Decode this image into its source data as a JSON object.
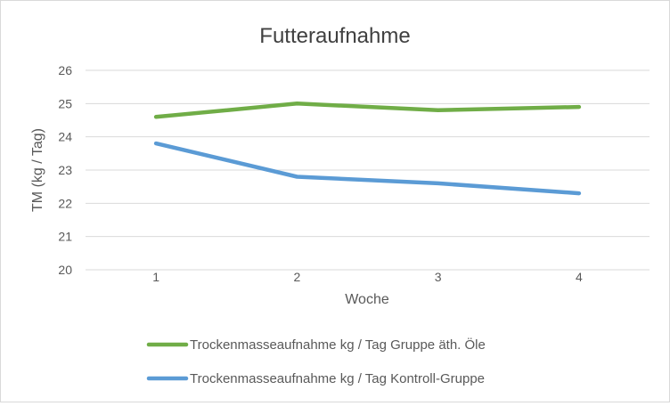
{
  "chart_data": {
    "type": "line",
    "title": "Futteraufnahme",
    "xlabel": "Woche",
    "ylabel": "TM (kg / Tag)",
    "categories": [
      "1",
      "2",
      "3",
      "4"
    ],
    "ylim": [
      20,
      26
    ],
    "yticks": [
      "20",
      "21",
      "22",
      "23",
      "24",
      "25",
      "26"
    ],
    "grid": true,
    "legend_position": "bottom",
    "series": [
      {
        "name": "Trockenmasseaufnahme kg / Tag Gruppe äth. Öle",
        "values": [
          24.6,
          25.0,
          24.8,
          24.9
        ],
        "color": "#70ad47"
      },
      {
        "name": "Trockenmasseaufnahme kg / Tag Kontroll-Gruppe",
        "values": [
          23.8,
          22.8,
          22.6,
          22.3
        ],
        "color": "#5b9bd5"
      }
    ]
  }
}
